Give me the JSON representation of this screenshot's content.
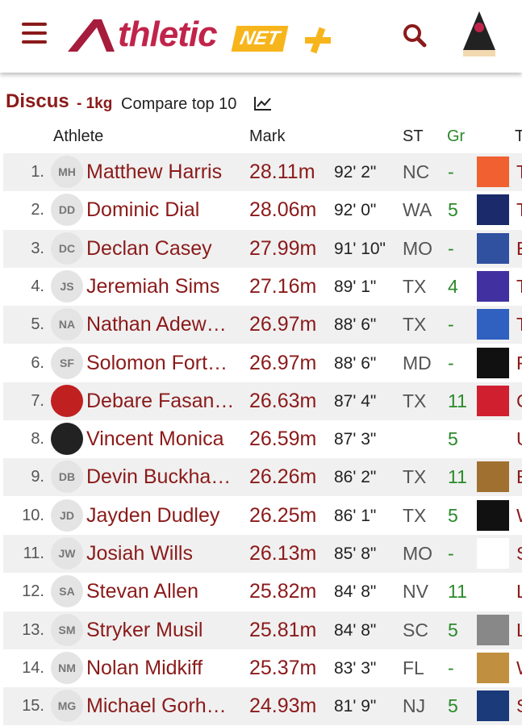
{
  "header": {
    "logo": {
      "main": "thletic",
      "suffix": "NET"
    }
  },
  "event": {
    "name": "Discus",
    "weight": "- 1kg",
    "compare": "Compare top 10"
  },
  "table": {
    "columns": [
      "Athlete",
      "Mark",
      "ST",
      "Gr",
      "T"
    ],
    "rows": [
      {
        "rank": "1.",
        "initials": "MH",
        "name": "Matthew Harris",
        "mark": "28.11m",
        "imperial": "92' 2\"",
        "state": "NC",
        "grade": "-",
        "team": "T"
      },
      {
        "rank": "2.",
        "initials": "DD",
        "name": "Dominic Dial",
        "mark": "28.06m",
        "imperial": "92' 0\"",
        "state": "WA",
        "grade": "5",
        "team": "T"
      },
      {
        "rank": "3.",
        "initials": "DC",
        "name": "Declan Casey",
        "mark": "27.99m",
        "imperial": "91' 10\"",
        "state": "MO",
        "grade": "-",
        "team": "E"
      },
      {
        "rank": "4.",
        "initials": "JS",
        "name": "Jeremiah Sims",
        "mark": "27.16m",
        "imperial": "89' 1\"",
        "state": "TX",
        "grade": "4",
        "team": "T"
      },
      {
        "rank": "5.",
        "initials": "NA",
        "name": "Nathan Adew…",
        "mark": "26.97m",
        "imperial": "88' 6\"",
        "state": "TX",
        "grade": "-",
        "team": "T"
      },
      {
        "rank": "6.",
        "initials": "SF",
        "name": "Solomon Fort…",
        "mark": "26.97m",
        "imperial": "88' 6\"",
        "state": "MD",
        "grade": "-",
        "team": "F"
      },
      {
        "rank": "7.",
        "initials": null,
        "name": "Debare Fasan…",
        "mark": "26.63m",
        "imperial": "87' 4\"",
        "state": "TX",
        "grade": "11",
        "team": "C"
      },
      {
        "rank": "8.",
        "initials": null,
        "name": "Vincent Monica",
        "mark": "26.59m",
        "imperial": "87' 3\"",
        "state": null,
        "grade": "5",
        "team": "U"
      },
      {
        "rank": "9.",
        "initials": "DB",
        "name": "Devin Buckha…",
        "mark": "26.26m",
        "imperial": "86' 2\"",
        "state": "TX",
        "grade": "11",
        "team": "E"
      },
      {
        "rank": "10.",
        "initials": "JD",
        "name": "Jayden Dudley",
        "mark": "26.25m",
        "imperial": "86' 1\"",
        "state": "TX",
        "grade": "5",
        "team": "W"
      },
      {
        "rank": "11.",
        "initials": "JW",
        "name": "Josiah Wills",
        "mark": "26.13m",
        "imperial": "85' 8\"",
        "state": "MO",
        "grade": "-",
        "team": "S"
      },
      {
        "rank": "12.",
        "initials": "SA",
        "name": "Stevan Allen",
        "mark": "25.82m",
        "imperial": "84' 8\"",
        "state": "NV",
        "grade": "11",
        "team": "L"
      },
      {
        "rank": "13.",
        "initials": "SM",
        "name": "Stryker Musil",
        "mark": "25.81m",
        "imperial": "84' 8\"",
        "state": "SC",
        "grade": "5",
        "team": "L"
      },
      {
        "rank": "14.",
        "initials": "NM",
        "name": "Nolan Midkiff",
        "mark": "25.37m",
        "imperial": "83' 3\"",
        "state": "FL",
        "grade": "-",
        "team": "W"
      },
      {
        "rank": "15.",
        "initials": "MG",
        "name": "Michael Gorh…",
        "mark": "24.93m",
        "imperial": "81' 9\"",
        "state": "NJ",
        "grade": "5",
        "team": "S"
      }
    ]
  }
}
